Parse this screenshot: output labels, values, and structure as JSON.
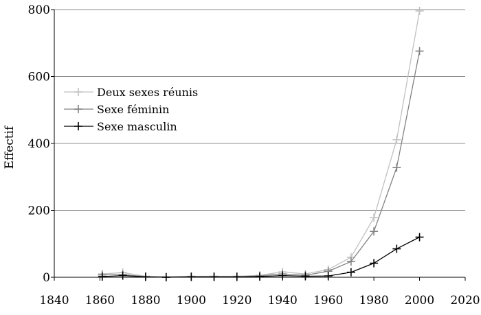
{
  "chart_data": {
    "type": "line",
    "title": "",
    "xlabel": "",
    "ylabel": "Effectif",
    "xlim": [
      1840,
      2020
    ],
    "ylim": [
      0,
      800
    ],
    "xticks": [
      1840,
      1860,
      1880,
      1900,
      1920,
      1940,
      1960,
      1980,
      2000,
      2020
    ],
    "yticks": [
      0,
      200,
      400,
      600,
      800
    ],
    "grid": "horizontal",
    "legend": "left",
    "x": [
      1861,
      1870,
      1880,
      1889,
      1900,
      1910,
      1920,
      1930,
      1940,
      1950,
      1960,
      1970,
      1980,
      1990,
      2000
    ],
    "series": [
      {
        "name": "Deux sexes réunis",
        "color": "#c0c0c0",
        "values": [
          10,
          14,
          3,
          1,
          3,
          3,
          3,
          6,
          16,
          10,
          23,
          60,
          178,
          411,
          796
        ]
      },
      {
        "name": "Sexe féminin",
        "color": "#808080",
        "values": [
          7,
          8,
          2,
          1,
          2,
          2,
          2,
          4,
          10,
          6,
          18,
          47,
          137,
          328,
          676
        ]
      },
      {
        "name": "Sexe masculin",
        "color": "#000000",
        "values": [
          2,
          5,
          1,
          0,
          1,
          1,
          1,
          2,
          5,
          3,
          4,
          15,
          42,
          85,
          120
        ]
      }
    ]
  }
}
